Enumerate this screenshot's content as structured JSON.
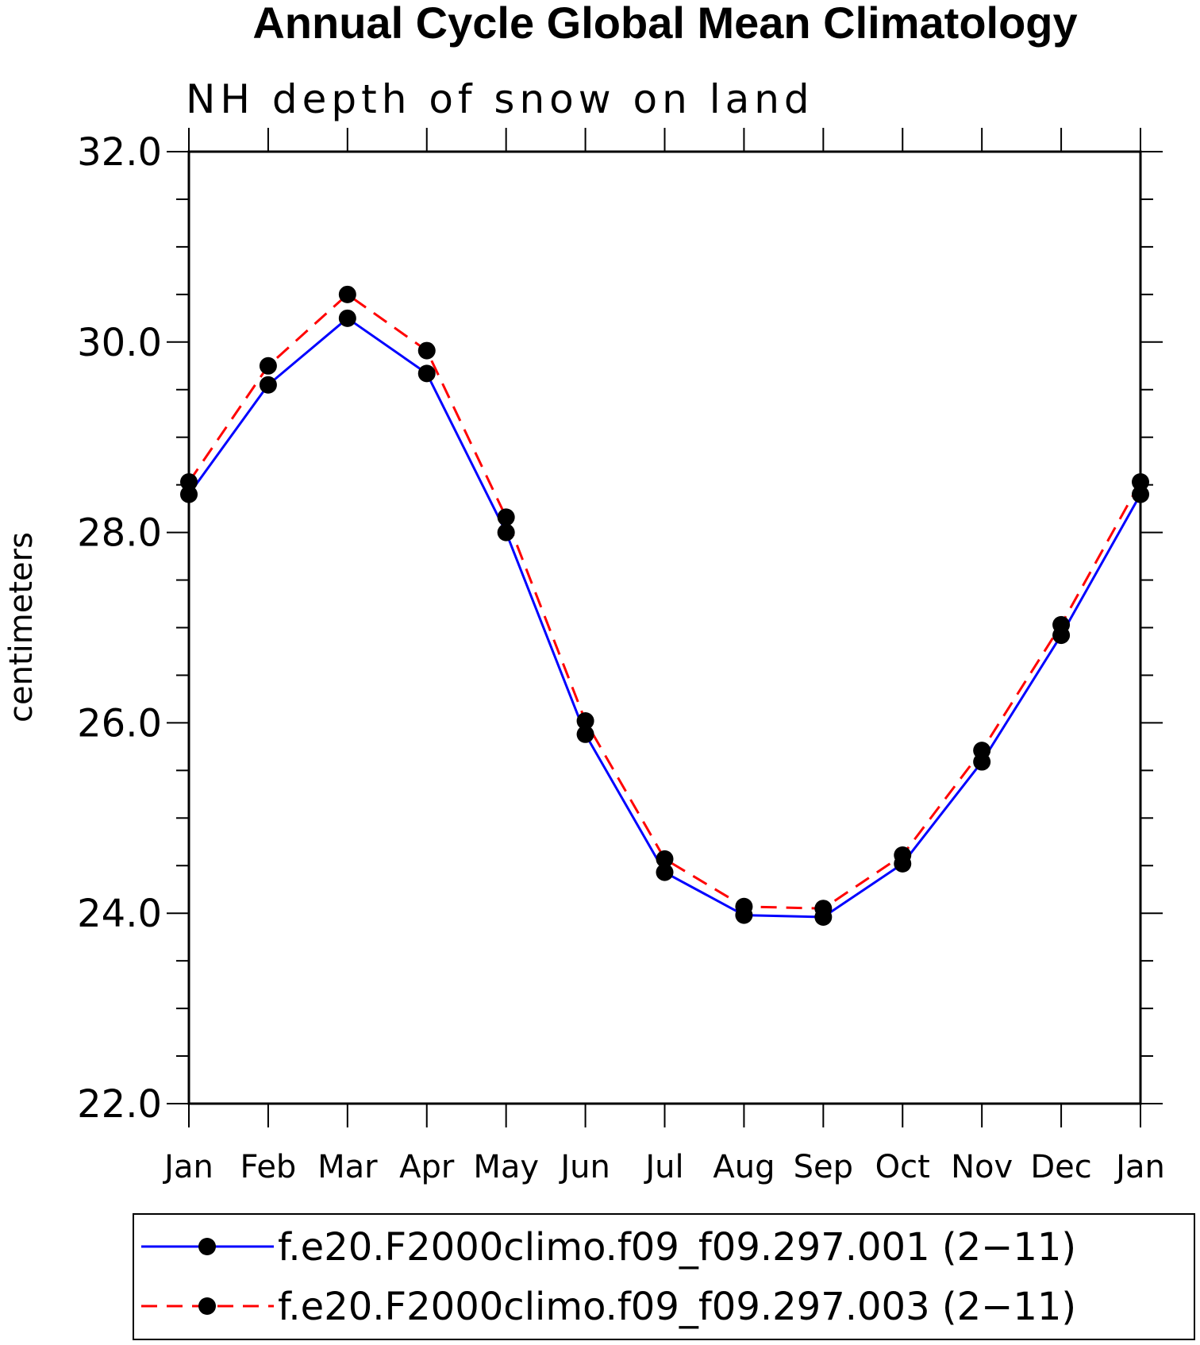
{
  "chart_data": {
    "type": "line",
    "title": "Annual Cycle Global Mean Climatology",
    "subtitle": "NH depth of snow on land",
    "ylabel": "centimeters",
    "xlabel": "",
    "ylim": [
      22.0,
      32.0
    ],
    "yticks": [
      "22.0",
      "24.0",
      "26.0",
      "28.0",
      "30.0",
      "32.0"
    ],
    "categories": [
      "Jan",
      "Feb",
      "Mar",
      "Apr",
      "May",
      "Jun",
      "Jul",
      "Aug",
      "Sep",
      "Oct",
      "Nov",
      "Dec",
      "Jan"
    ],
    "series": [
      {
        "name": "f.e20.F2000climo.f09_f09.297.001 (2−11)",
        "color": "#0000ff",
        "dash": "solid",
        "marker": "filled-circle",
        "values": [
          28.4,
          29.55,
          30.25,
          29.67,
          28.0,
          25.88,
          24.43,
          23.98,
          23.96,
          24.52,
          25.59,
          26.92,
          28.4
        ]
      },
      {
        "name": "f.e20.F2000climo.f09_f09.297.003 (2−11)",
        "color": "#ff0000",
        "dash": "dashed",
        "marker": "filled-circle",
        "values": [
          28.53,
          29.75,
          30.5,
          29.91,
          28.16,
          26.02,
          24.57,
          24.07,
          24.05,
          24.61,
          25.71,
          27.03,
          28.53
        ]
      }
    ],
    "grid": false,
    "legend_position": "bottom"
  }
}
